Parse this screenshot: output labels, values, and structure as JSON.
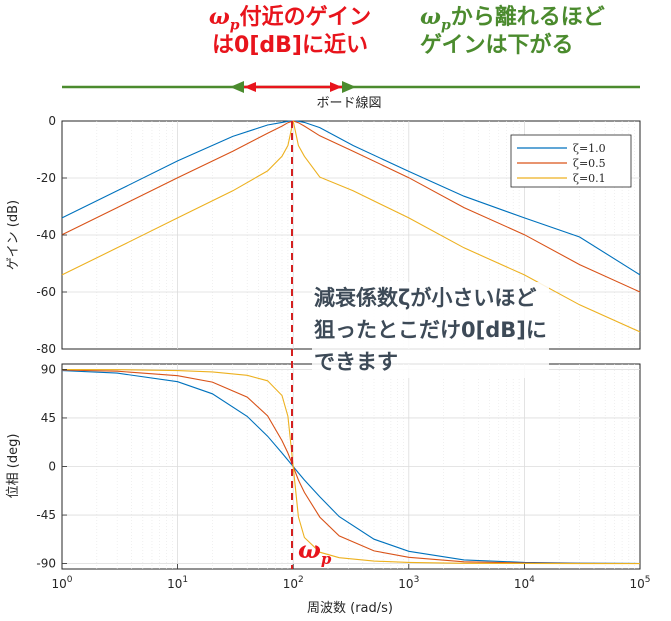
{
  "annotations": {
    "red_title_line1_symbol": "ω",
    "red_title_line1_sub": "p",
    "red_title_line1_text": "付近のゲイン",
    "red_title_line2": "は0[dB]に近い",
    "green_title_line1_symbol": "ω",
    "green_title_line1_sub": "p",
    "green_title_line1_text": "から離れるほど",
    "green_title_line2": "ゲインは下がる",
    "damping_note_line1": "減衰係数ζが小さいほど",
    "damping_note_line2": "狙ったとこだけ0[dB]に",
    "damping_note_line3": "できます",
    "wp_marker_symbol": "ω",
    "wp_marker_sub": "p"
  },
  "colors": {
    "red_annotation": "#e8141c",
    "green_annotation": "#4b8b2e",
    "dashed_marker": "#d42020",
    "series_1": "#0072bd",
    "series_2": "#d95319",
    "series_3": "#edb120"
  },
  "chart_data": [
    {
      "type": "line",
      "title": "ボード線図",
      "xlabel": "",
      "ylabel": "ゲイン (dB)",
      "x_scale": "log",
      "xlim": [
        1,
        100000
      ],
      "ylim": [
        -80,
        0
      ],
      "yticks": [
        0,
        -20,
        -40,
        -60,
        -80
      ],
      "ytick_labels": [
        "0",
        "-20",
        "-40",
        "-60",
        "-80"
      ],
      "grid": true,
      "legend_position": "top-right",
      "x": [
        1,
        3,
        10,
        30,
        60,
        80,
        90,
        100,
        111,
        125,
        170,
        330,
        1000,
        3000,
        10000,
        30000,
        100000
      ],
      "series": [
        {
          "name": "ζ=1.0",
          "values": [
            -34.0,
            -24.5,
            -14.0,
            -5.4,
            -1.4,
            -0.5,
            -0.1,
            0.0,
            -0.1,
            -0.5,
            -2.3,
            -8.6,
            -17.7,
            -26.4,
            -34.0,
            -40.7,
            -54.0
          ]
        },
        {
          "name": "ζ=0.5",
          "values": [
            -39.9,
            -30.4,
            -19.9,
            -10.6,
            -4.3,
            -1.8,
            -0.6,
            0.0,
            -0.6,
            -1.8,
            -5.2,
            -10.6,
            -19.9,
            -30.4,
            -39.9,
            -50.4,
            -60.0
          ]
        },
        {
          "name": "ζ=0.1",
          "values": [
            -54.0,
            -44.5,
            -34.0,
            -24.5,
            -17.5,
            -12.4,
            -8.6,
            0.0,
            -8.6,
            -12.4,
            -19.7,
            -24.5,
            -34.0,
            -44.5,
            -54.0,
            -64.5,
            -74.0
          ]
        }
      ]
    },
    {
      "type": "line",
      "xlabel": "周波数 (rad/s)",
      "ylabel": "位相 (deg)",
      "x_scale": "log",
      "xlim": [
        1,
        100000
      ],
      "ylim": [
        -95,
        95
      ],
      "yticks": [
        90,
        45,
        0,
        -45,
        -90
      ],
      "ytick_labels": [
        "90",
        "45",
        "0",
        "-45",
        "-90"
      ],
      "xtick_labels": [
        {
          "base": "10",
          "exp": "0"
        },
        {
          "base": "10",
          "exp": "1"
        },
        {
          "base": "10",
          "exp": "2"
        },
        {
          "base": "10",
          "exp": "3"
        },
        {
          "base": "10",
          "exp": "4"
        },
        {
          "base": "10",
          "exp": "5"
        }
      ],
      "grid": true,
      "x": [
        1,
        3,
        10,
        20,
        40,
        60,
        80,
        90,
        100,
        111,
        125,
        170,
        250,
        500,
        1000,
        3000,
        10000,
        30000,
        100000
      ],
      "series": [
        {
          "name": "ζ=1.0",
          "values": [
            88.9,
            86.6,
            78.6,
            67.4,
            46.4,
            28.1,
            12.5,
            5.9,
            0.0,
            -5.9,
            -12.5,
            -28.1,
            -46.4,
            -67.4,
            -78.6,
            -86.6,
            -88.9,
            -89.6,
            -89.9
          ]
        },
        {
          "name": "ζ=0.5",
          "values": [
            89.4,
            88.3,
            84.2,
            78.2,
            64.3,
            46.9,
            24.0,
            12.5,
            0.0,
            -12.5,
            -24.0,
            -46.9,
            -64.3,
            -78.2,
            -84.2,
            -88.3,
            -89.4,
            -89.8,
            -89.9
          ]
        },
        {
          "name": "ζ=0.1",
          "values": [
            89.9,
            89.7,
            88.9,
            87.7,
            84.5,
            79.4,
            65.8,
            46.6,
            0.0,
            -46.6,
            -65.8,
            -79.4,
            -84.5,
            -87.7,
            -88.9,
            -89.7,
            -89.9,
            -90.0,
            -90.0
          ]
        }
      ]
    }
  ]
}
